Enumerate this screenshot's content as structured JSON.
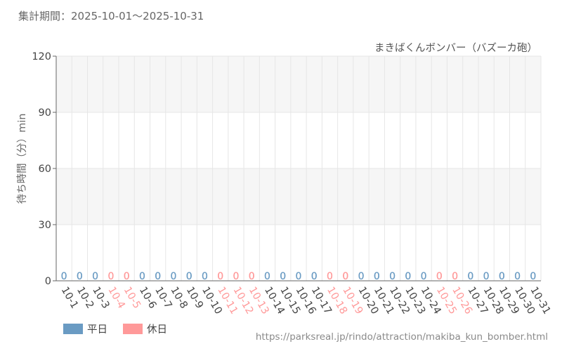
{
  "header": {
    "period": "集計期間：2025-10-01～2025-10-31"
  },
  "chart_data": {
    "type": "bar",
    "title": "まきばくんボンバー（バズーカ砲）",
    "ylabel": "待ち時間（分）min",
    "xlabel": "",
    "ylim": [
      0,
      120
    ],
    "yticks": [
      0,
      30,
      60,
      90,
      120
    ],
    "grid": true,
    "categories": [
      "10-1",
      "10-2",
      "10-3",
      "10-4",
      "10-5",
      "10-6",
      "10-7",
      "10-8",
      "10-9",
      "10-10",
      "10-11",
      "10-12",
      "10-13",
      "10-14",
      "10-15",
      "10-16",
      "10-17",
      "10-18",
      "10-19",
      "10-20",
      "10-21",
      "10-22",
      "10-23",
      "10-24",
      "10-25",
      "10-26",
      "10-27",
      "10-28",
      "10-29",
      "10-30",
      "10-31"
    ],
    "day_type": [
      "weekday",
      "weekday",
      "weekday",
      "holiday",
      "holiday",
      "weekday",
      "weekday",
      "weekday",
      "weekday",
      "weekday",
      "holiday",
      "holiday",
      "holiday",
      "weekday",
      "weekday",
      "weekday",
      "weekday",
      "holiday",
      "holiday",
      "weekday",
      "weekday",
      "weekday",
      "weekday",
      "weekday",
      "holiday",
      "holiday",
      "weekday",
      "weekday",
      "weekday",
      "weekday",
      "weekday"
    ],
    "values": [
      0,
      0,
      0,
      0,
      0,
      0,
      0,
      0,
      0,
      0,
      0,
      0,
      0,
      0,
      0,
      0,
      0,
      0,
      0,
      0,
      0,
      0,
      0,
      0,
      0,
      0,
      0,
      0,
      0,
      0,
      0
    ],
    "data_labels": [
      "0",
      "0",
      "0",
      "0",
      "0",
      "0",
      "0",
      "0",
      "0",
      "0",
      "0",
      "0",
      "0",
      "0",
      "0",
      "0",
      "0",
      "0",
      "0",
      "0",
      "0",
      "0",
      "0",
      "0",
      "0",
      "0",
      "0",
      "0",
      "0",
      "0",
      "0"
    ],
    "legend": [
      {
        "key": "weekday",
        "label": "平日",
        "color": "#6a9bc3"
      },
      {
        "key": "holiday",
        "label": "休日",
        "color": "#ff9999"
      }
    ],
    "legend_position": "bottom-left"
  },
  "footer": {
    "url": "https://parksreal.jp/rindo/attraction/makiba_kun_bomber.html"
  }
}
